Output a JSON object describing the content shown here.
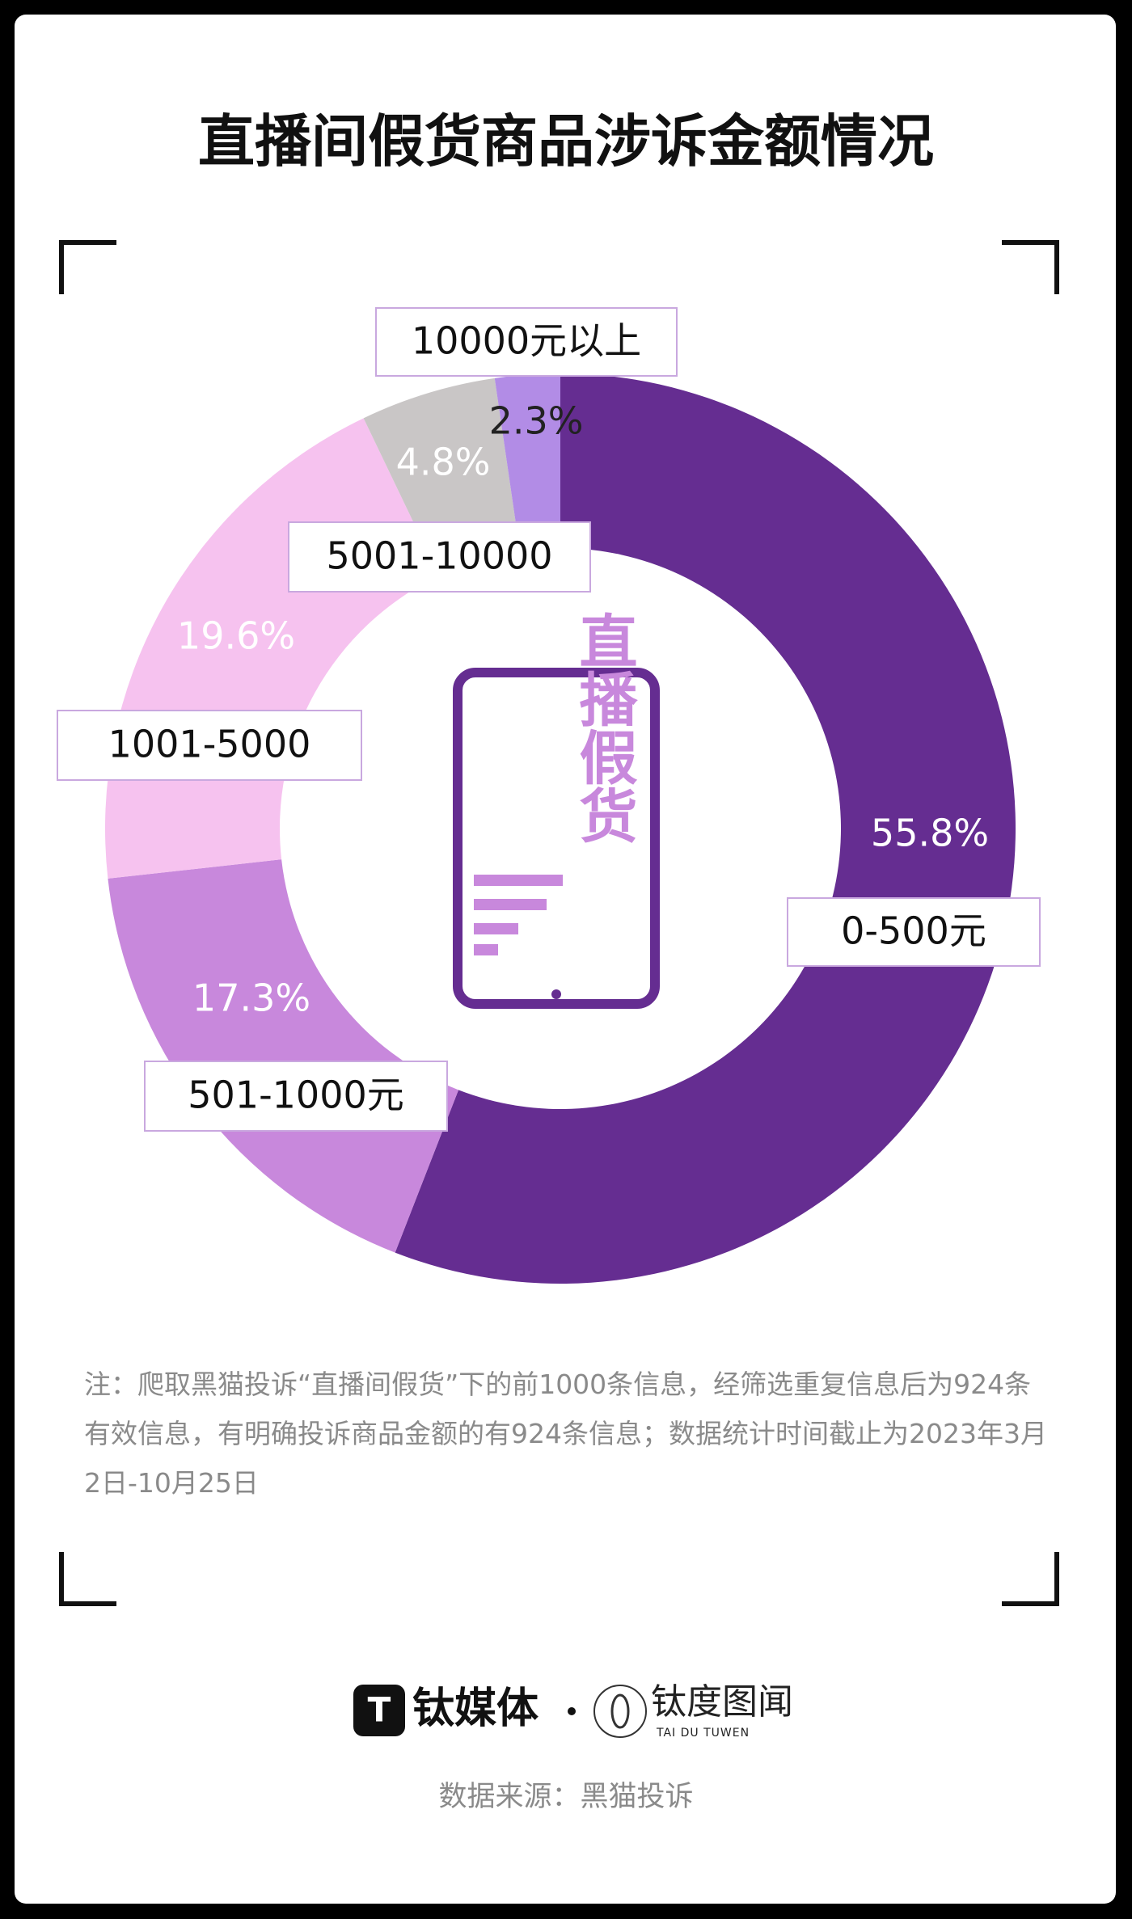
{
  "chart_data": {
    "type": "donut",
    "title": "直播间假货商品涉诉金额情况",
    "categories": [
      "0-500元",
      "501-1000元",
      "1001-5000",
      "5001-10000",
      "10000元以上"
    ],
    "values": [
      55.8,
      17.3,
      19.6,
      4.8,
      2.3
    ],
    "value_labels": [
      "55.8%",
      "17.3%",
      "19.6%",
      "4.8%",
      "2.3%"
    ],
    "colors": [
      "#652d91",
      "#c888dc",
      "#f6c2ef",
      "#c9c6c6",
      "#b28ce6"
    ],
    "center_label": "直播假货"
  },
  "note": "注：爬取黑猫投诉“直播间假货”下的前1000条信息，经筛选重复信息后为924条有效信息，有明确投诉商品金额的有924条信息；数据统计时间截止为2023年3月2日-10月25日",
  "brand": {
    "name": "钛媒体",
    "partner": "钛度图闻",
    "partner_en": "TAI DU TUWEN"
  },
  "source": "数据来源：黑猫投诉"
}
